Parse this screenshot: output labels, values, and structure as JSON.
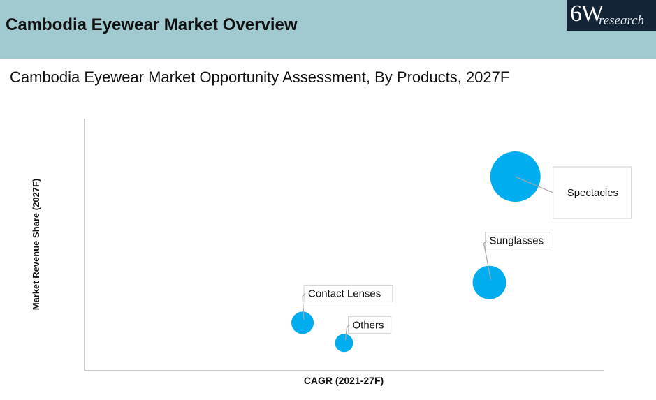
{
  "header": {
    "title": "Cambodia Eyewear Market Overview",
    "logo_main": "6W",
    "logo_sub": "research"
  },
  "chart_data": {
    "type": "scatter",
    "title": "Cambodia Eyewear Market Opportunity Assessment, By Products, 2027F",
    "xlabel": "CAGR (2021-27F)",
    "ylabel": "Market Revenue Share (2027F)",
    "xlim": [
      0,
      100
    ],
    "ylim": [
      0,
      100
    ],
    "grid": false,
    "points": [
      {
        "label": "Spectacles",
        "x": 83,
        "y": 77,
        "size": 36,
        "label_offset": [
          70,
          24
        ]
      },
      {
        "label": "Sunglasses",
        "x": 78,
        "y": 35,
        "size": 24,
        "label_offset": [
          8,
          -58
        ]
      },
      {
        "label": "Contact Lenses",
        "x": 42,
        "y": 19,
        "size": 16,
        "label_offset": [
          16,
          -40
        ]
      },
      {
        "label": "Others",
        "x": 50,
        "y": 11,
        "size": 13,
        "label_offset": [
          20,
          -24
        ]
      }
    ],
    "colors": {
      "bubble": "#00aeef",
      "axis": "#a6a6a6",
      "leader": "#a6a6a6"
    }
  }
}
